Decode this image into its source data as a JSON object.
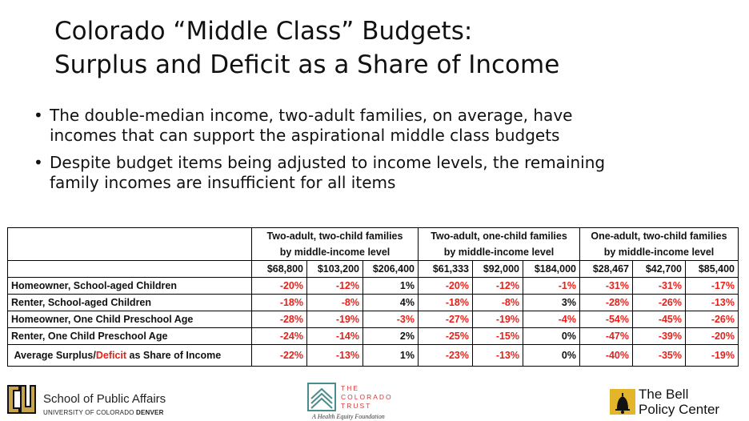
{
  "title": {
    "line1": "Colorado “Middle Class” Budgets:",
    "line2": "Surplus and Deficit as a Share of Income"
  },
  "bullets": [
    {
      "line1": "The double-median income, two-adult families, on average, have",
      "line2": "incomes that can support the aspirational middle class budgets"
    },
    {
      "line1": "Despite budget items being adjusted to income levels, the remaining",
      "line2": "family incomes are insufficient for all items"
    }
  ],
  "table": {
    "groups": [
      {
        "line1": "Two-adult, two-child families",
        "line2": "by middle-income level"
      },
      {
        "line1": "Two-adult, one-child families",
        "line2": "by middle-income level"
      },
      {
        "line1": "One-adult, two-child families",
        "line2": "by middle-income level"
      }
    ],
    "incomes": [
      "$68,800",
      "$103,200",
      "$206,400",
      "$61,333",
      "$92,000",
      "$184,000",
      "$28,467",
      "$42,700",
      "$85,400"
    ],
    "rows": [
      {
        "label": "Homeowner, School-aged Children",
        "values": [
          "-20%",
          "-12%",
          "1%",
          "-20%",
          "-12%",
          "-1%",
          "-31%",
          "-31%",
          "-17%"
        ]
      },
      {
        "label": "Renter, School-aged Children",
        "values": [
          "-18%",
          "-8%",
          "4%",
          "-18%",
          "-8%",
          "3%",
          "-28%",
          "-26%",
          "-13%"
        ]
      },
      {
        "label": "Homeowner, One Child Preschool Age",
        "values": [
          "-28%",
          "-19%",
          "-3%",
          "-27%",
          "-19%",
          "-4%",
          "-54%",
          "-45%",
          "-26%"
        ]
      },
      {
        "label": "Renter, One Child Preschool Age",
        "values": [
          "-24%",
          "-14%",
          "2%",
          "-25%",
          "-15%",
          "0%",
          "-47%",
          "-39%",
          "-20%"
        ]
      }
    ],
    "average": {
      "label_prefix": "Average Surplus/",
      "label_highlight": "Deficit",
      "label_suffix": " as Share of Income",
      "values": [
        "-22%",
        "-13%",
        "1%",
        "-23%",
        "-13%",
        "0%",
        "-40%",
        "-35%",
        "-19%"
      ]
    }
  },
  "logos": {
    "cu": {
      "line1": "School of Public Affairs",
      "line2_prefix": "UNIVERSITY OF COLORADO ",
      "line2_bold": "DENVER"
    },
    "trust": {
      "line1": "THE",
      "line2": "COLORADO",
      "line3": "TRUST",
      "tagline": "A Health Equity Foundation"
    },
    "bell": {
      "line1": "The Bell",
      "line2": "Policy Center"
    }
  },
  "colors": {
    "negative": "#e8201a",
    "trust": "#d63b3b",
    "cu_gold": "#c9a44a"
  }
}
